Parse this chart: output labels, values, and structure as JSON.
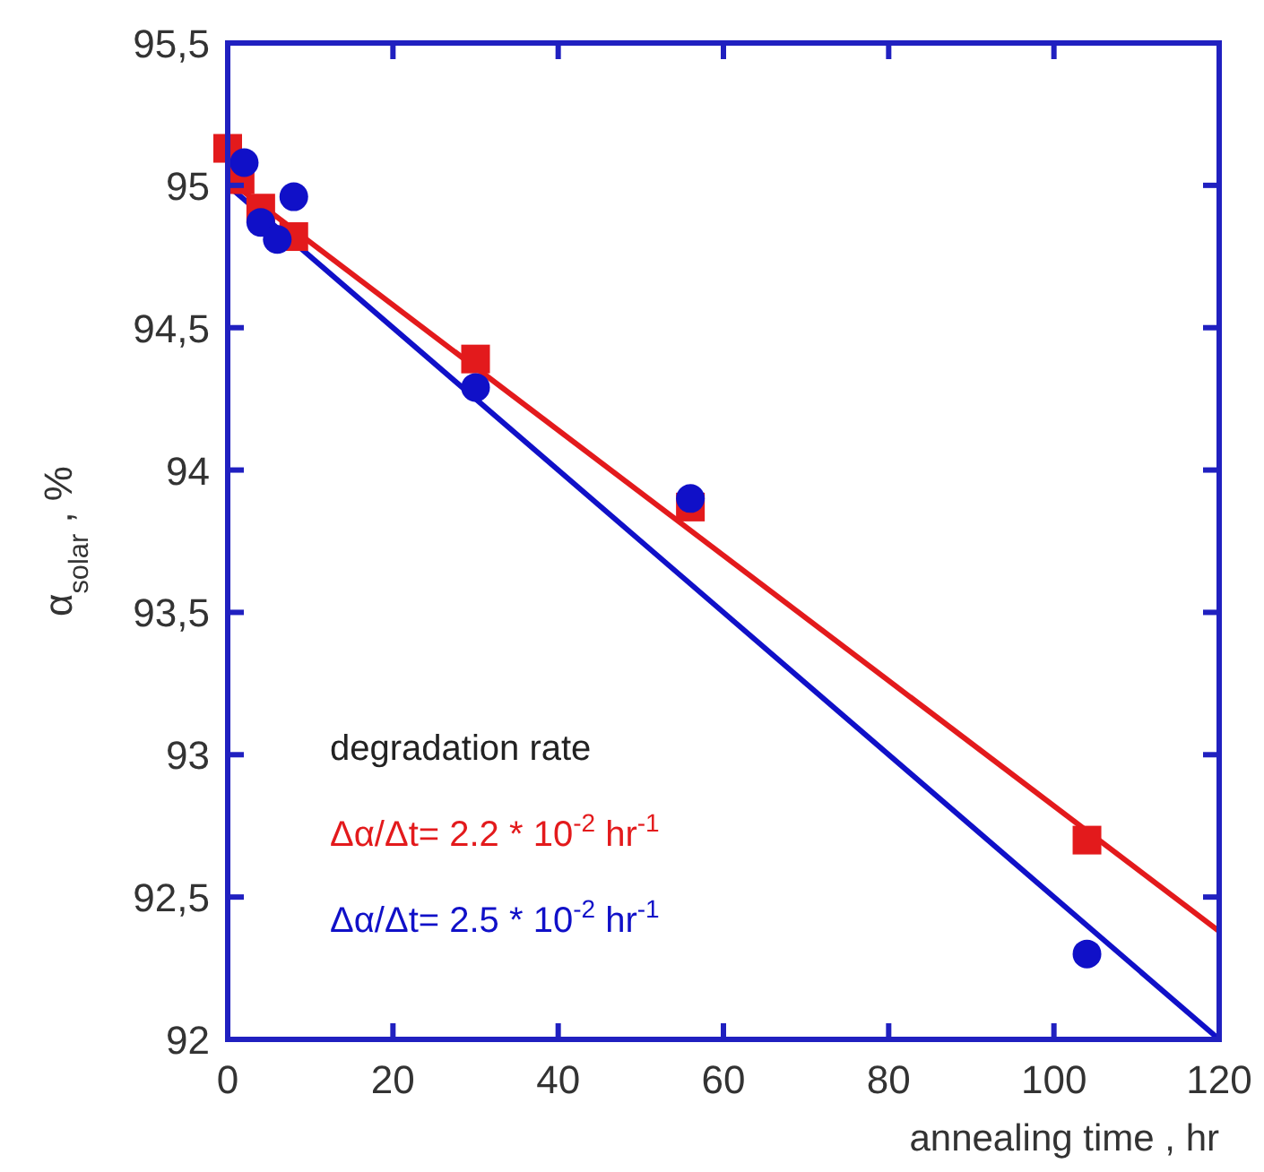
{
  "chart_data": {
    "type": "scatter",
    "xlabel": "annealing time , hr",
    "ylabel": "α$_{solar}$ , %",
    "xlim": [
      0,
      120
    ],
    "xticks": [
      0,
      20,
      40,
      60,
      80,
      100,
      120
    ],
    "ylim": [
      92,
      95.5
    ],
    "yticks": [
      92,
      {
        "value": 92.5,
        "label": "92,5"
      },
      93,
      {
        "value": 93.5,
        "label": "93,5"
      },
      94,
      {
        "value": 94.5,
        "label": "94,5"
      },
      95,
      {
        "value": 95.5,
        "label": "95,5"
      }
    ],
    "grid": false,
    "series": [
      {
        "marker": "square",
        "color": "#e31a1c",
        "x": [
          0,
          1.5,
          4,
          8,
          30,
          56,
          104
        ],
        "values": [
          95.13,
          95.02,
          94.92,
          94.82,
          94.39,
          93.87,
          92.7
        ]
      },
      {
        "marker": "circle",
        "color": "#1010c8",
        "x": [
          2,
          4,
          6,
          8,
          30,
          56,
          104
        ],
        "values": [
          95.08,
          94.87,
          94.81,
          94.96,
          94.29,
          93.9,
          92.3
        ]
      },
      {
        "type": "line",
        "marker": "none",
        "color": "#e31a1c",
        "x": [
          0,
          120
        ],
        "values": [
          95.02,
          92.38
        ]
      },
      {
        "type": "line",
        "marker": "none",
        "color": "#1010c8",
        "x": [
          0,
          120
        ],
        "values": [
          95.0,
          92.0
        ]
      }
    ],
    "annotations": [
      "degradation rate",
      "Δα/Δt= 2.2 * 10$^{-2}$ hr$^{-1}$",
      "Δα/Δt= 2.5 * 10$^{-2}$ hr$^{-1}$"
    ]
  }
}
